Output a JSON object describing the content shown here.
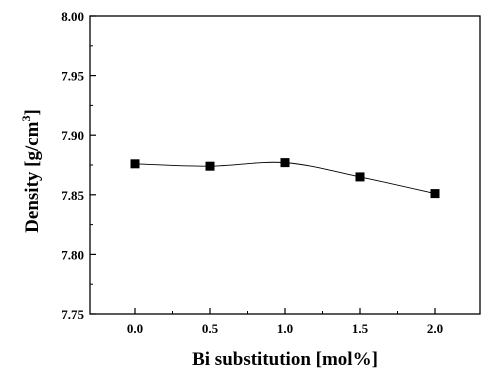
{
  "chart_data": {
    "type": "line",
    "xlabel": "Bi substitution [mol%]",
    "ylabel_main": "Density [g/cm",
    "ylabel_sup": "3",
    "ylabel_end": "]",
    "xlim": [
      -0.3,
      2.3
    ],
    "ylim": [
      7.75,
      8.0
    ],
    "x_ticks": [
      0.0,
      0.5,
      1.0,
      1.5,
      2.0
    ],
    "x_tick_labels": [
      "0.0",
      "0.5",
      "1.0",
      "1.5",
      "2.0"
    ],
    "y_ticks": [
      7.75,
      7.8,
      7.85,
      7.9,
      7.95,
      8.0
    ],
    "y_tick_labels": [
      "7.75",
      "7.80",
      "7.85",
      "7.90",
      "7.95",
      "8.00"
    ],
    "series": [
      {
        "marker": "square",
        "color": "#000000",
        "x": [
          0.0,
          0.5,
          1.0,
          1.5,
          2.0
        ],
        "y": [
          7.876,
          7.874,
          7.877,
          7.865,
          7.851
        ]
      }
    ],
    "grid": false
  }
}
